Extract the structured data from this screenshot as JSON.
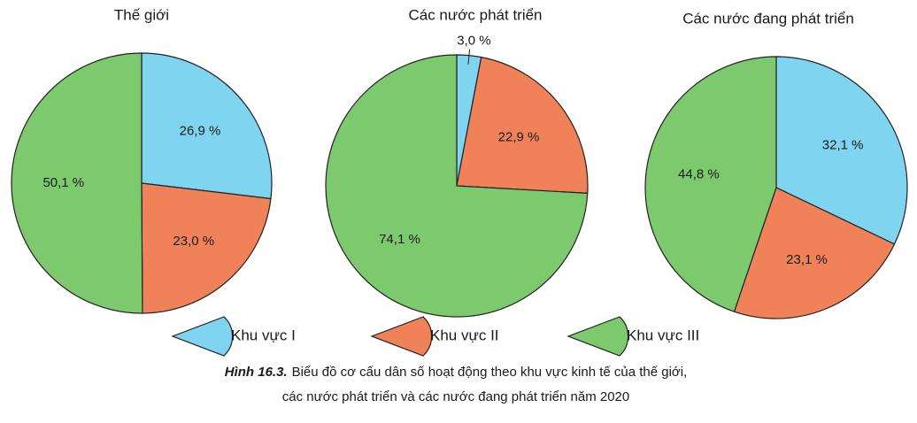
{
  "chart_data": [
    {
      "type": "pie",
      "title": "Thế giới",
      "categories": [
        "Khu vực I",
        "Khu vực II",
        "Khu vực III"
      ],
      "values": [
        26.9,
        23.0,
        50.1
      ],
      "value_labels": [
        "26,9 %",
        "23,0 %",
        "50,1 %"
      ],
      "colors": [
        "#7fd4f0",
        "#f0825a",
        "#7dca6e"
      ]
    },
    {
      "type": "pie",
      "title": "Các nước phát triển",
      "categories": [
        "Khu vực I",
        "Khu vực II",
        "Khu vực III"
      ],
      "values": [
        3.0,
        22.9,
        74.1
      ],
      "value_labels": [
        "3,0 %",
        "22,9 %",
        "74,1 %"
      ],
      "colors": [
        "#7fd4f0",
        "#f0825a",
        "#7dca6e"
      ]
    },
    {
      "type": "pie",
      "title": "Các nước đang phát triển",
      "categories": [
        "Khu vực I",
        "Khu vực II",
        "Khu vực III"
      ],
      "values": [
        32.1,
        23.1,
        44.8
      ],
      "value_labels": [
        "32,1 %",
        "23,1 %",
        "44,8 %"
      ],
      "colors": [
        "#7fd4f0",
        "#f0825a",
        "#7dca6e"
      ]
    }
  ],
  "caption": {
    "label": "Hình 16.3.",
    "lines": [
      "Biểu đồ cơ cấu dân số hoạt động theo khu vực kinh tế của thế giới,",
      "các nước phát triển và các nước đang phát triển năm 2020"
    ]
  }
}
